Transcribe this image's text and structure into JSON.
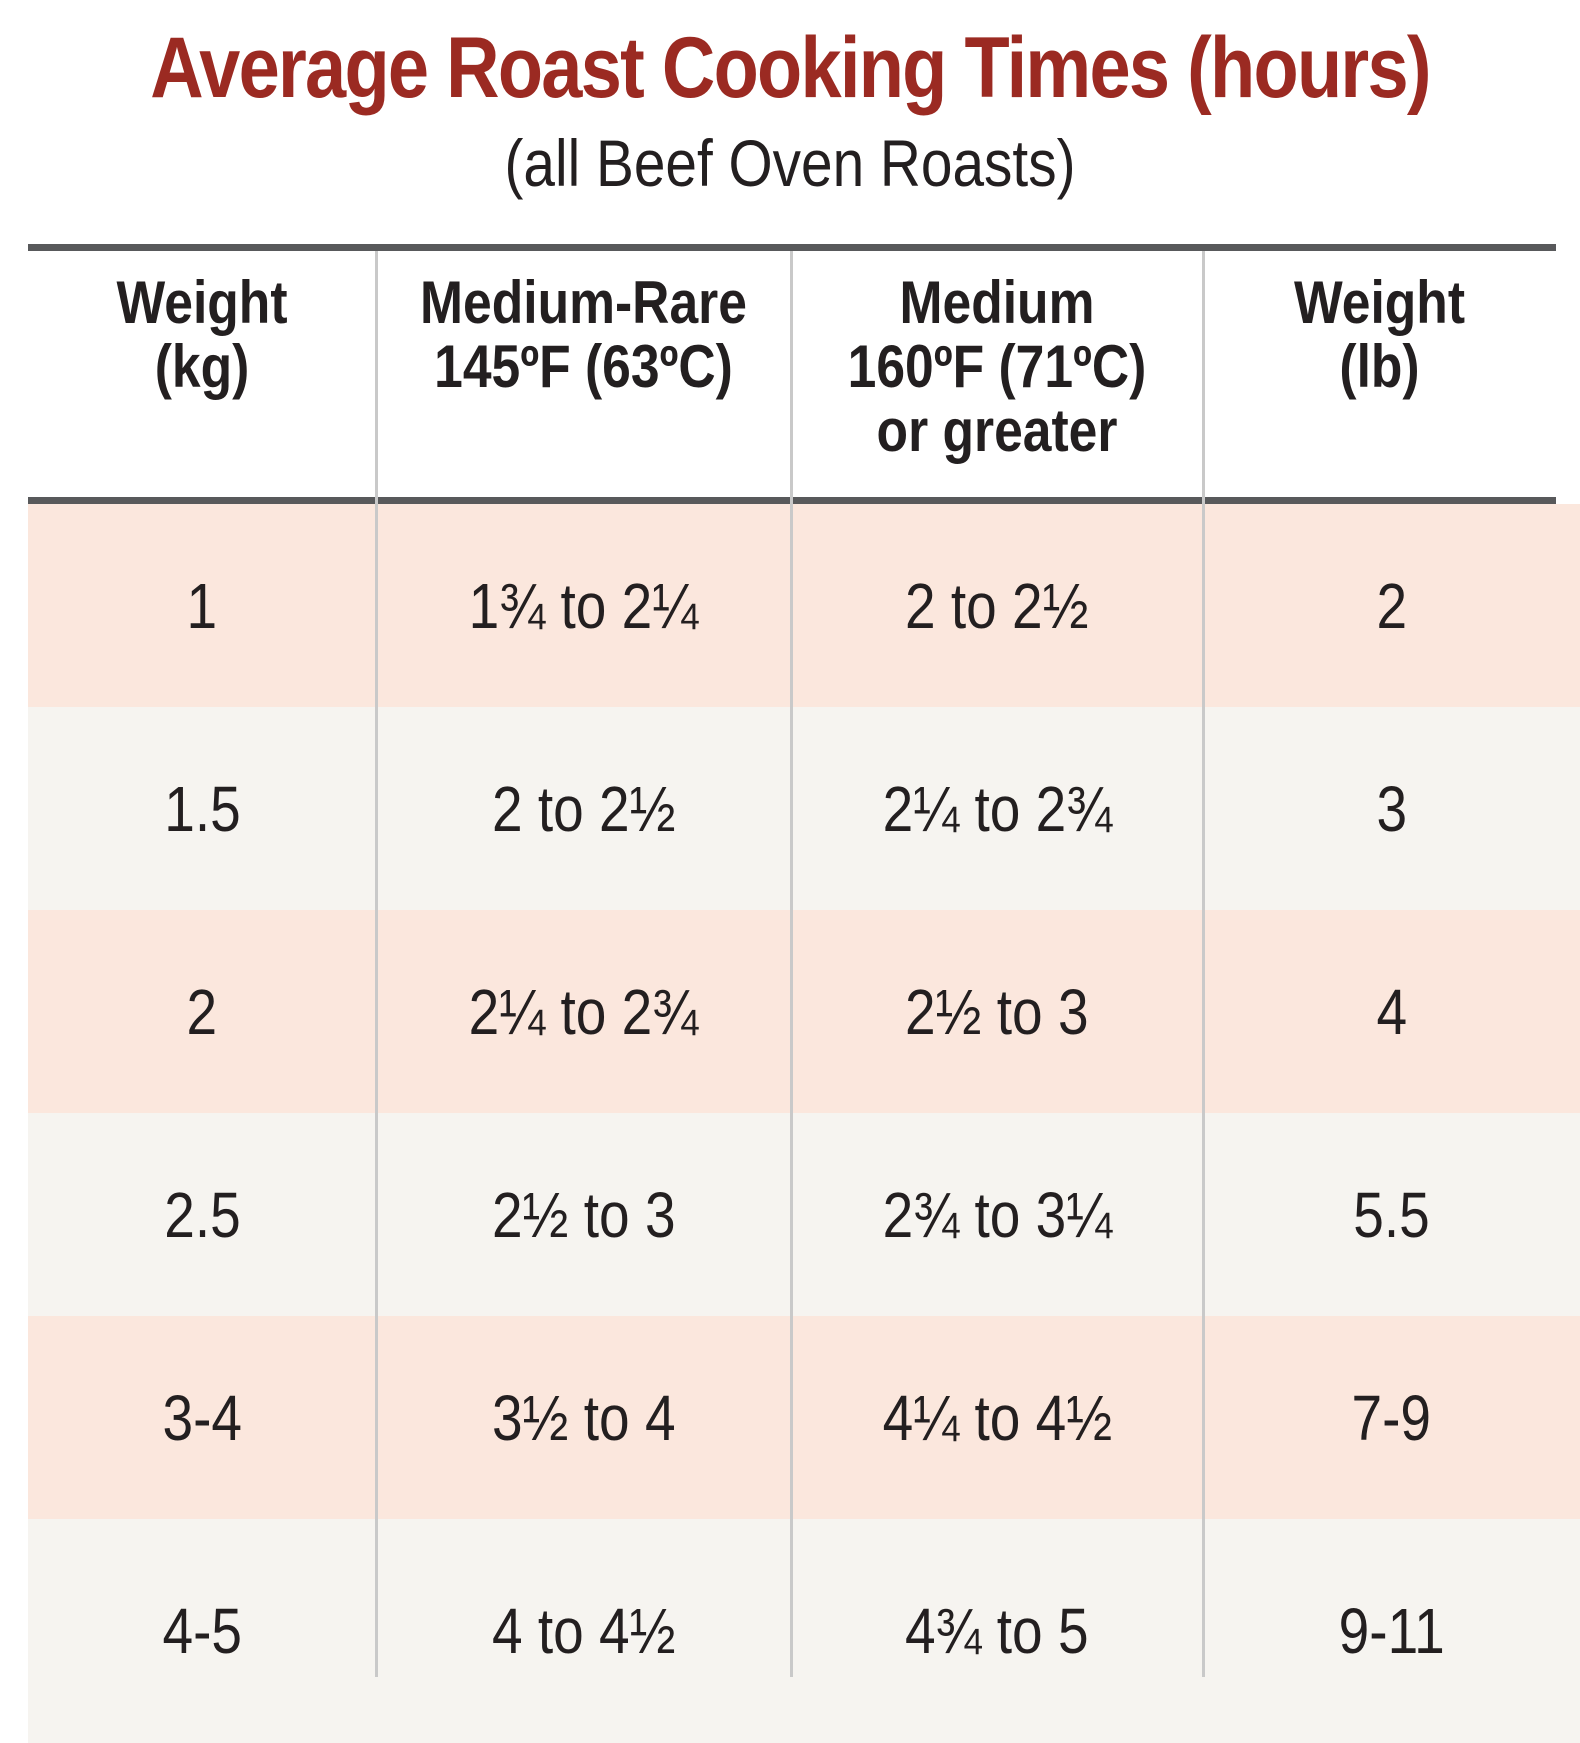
{
  "title": "Average Roast Cooking Times (hours)",
  "subtitle": "(all Beef Oven Roasts)",
  "colors": {
    "title": "#9b2a22",
    "row_peach": "#fbe7dd",
    "row_grey": "#f6f4f0",
    "rule": "#58595b"
  },
  "headers": [
    {
      "line1": "Weight",
      "line2": "(kg)",
      "line3": ""
    },
    {
      "line1": "Medium-Rare",
      "line2": "145ºF (63ºC)",
      "line3": ""
    },
    {
      "line1": "Medium",
      "line2": "160ºF (71ºC)",
      "line3": "or greater"
    },
    {
      "line1": "Weight",
      "line2": "(lb)",
      "line3": ""
    }
  ],
  "rows": [
    {
      "kg": "1",
      "medium_rare": "1¾ to 2¼",
      "medium": "2 to 2½",
      "lb": "2"
    },
    {
      "kg": "1.5",
      "medium_rare": "2 to 2½",
      "medium": "2¼ to 2¾",
      "lb": "3"
    },
    {
      "kg": "2",
      "medium_rare": "2¼ to 2¾",
      "medium": "2½ to 3",
      "lb": "4"
    },
    {
      "kg": "2.5",
      "medium_rare": "2½ to 3",
      "medium": "2¾ to 3¼",
      "lb": "5.5"
    },
    {
      "kg": "3-4",
      "medium_rare": "3½ to 4",
      "medium": "4¼ to 4½",
      "lb": "7-9"
    },
    {
      "kg": "4-5",
      "medium_rare": "4 to 4½",
      "medium": "4¾ to 5",
      "lb": "9-11"
    }
  ]
}
